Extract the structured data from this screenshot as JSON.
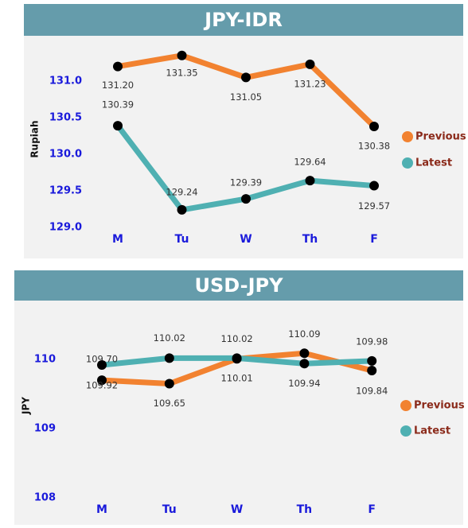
{
  "chart_data": [
    {
      "type": "line",
      "title": "JPY-IDR",
      "y_label": "Rupiah",
      "categories": [
        "M",
        "Tu",
        "W",
        "Th",
        "F"
      ],
      "series": [
        {
          "name": "Previous",
          "color": "#f28230",
          "values": [
            131.2,
            131.35,
            131.05,
            131.23,
            130.38
          ],
          "value_labels": [
            "131.20",
            "131.35",
            "131.05",
            "131.23",
            "130.38"
          ]
        },
        {
          "name": "Latest",
          "color": "#4fb0b2",
          "values": [
            130.39,
            129.24,
            129.39,
            129.64,
            129.57
          ],
          "value_labels": [
            "130.39",
            "129.24",
            "129.39",
            "129.64",
            "129.57"
          ]
        }
      ],
      "ylim": [
        129.0,
        131.5
      ],
      "yticks": [
        {
          "value": 129,
          "label": "129.0"
        },
        129.5,
        {
          "value": 130,
          "label": "130.0"
        },
        130.5,
        {
          "value": 131,
          "label": "131.0"
        }
      ]
    },
    {
      "type": "line",
      "title": "USD-JPY",
      "y_label": "JPY",
      "categories": [
        "M",
        "Tu",
        "W",
        "Th",
        "F"
      ],
      "series": [
        {
          "name": "Previous",
          "color": "#f28230",
          "values": [
            109.7,
            109.65,
            110.01,
            110.09,
            109.84
          ],
          "value_labels": [
            "109.70",
            "109.65",
            "110.01",
            "110.09",
            "109.84"
          ]
        },
        {
          "name": "Latest",
          "color": "#4fb0b2",
          "values": [
            109.92,
            110.02,
            110.02,
            109.94,
            109.98
          ],
          "value_labels": [
            "109.92",
            "110.02",
            "110.02",
            "109.94",
            "109.98"
          ]
        }
      ],
      "ylim": [
        108,
        110.3
      ],
      "yticks": [
        108,
        109,
        110
      ]
    }
  ]
}
